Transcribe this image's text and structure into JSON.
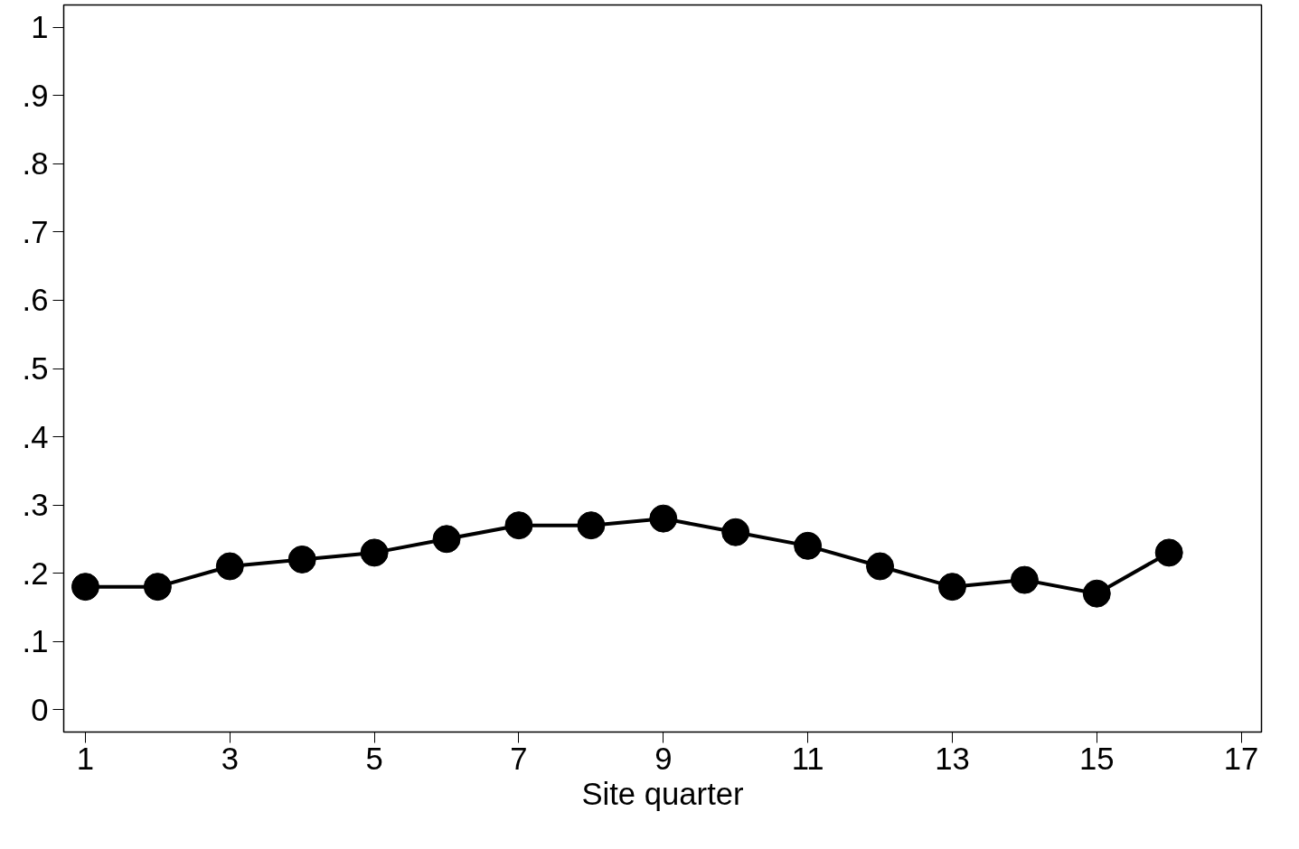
{
  "chart_data": {
    "type": "line",
    "xlabel": "Site quarter",
    "x": [
      1,
      2,
      3,
      4,
      5,
      6,
      7,
      8,
      9,
      10,
      11,
      12,
      13,
      14,
      15,
      16
    ],
    "series": [
      {
        "color": "#000000",
        "values": [
          0.18,
          0.18,
          0.21,
          0.22,
          0.23,
          0.25,
          0.27,
          0.27,
          0.28,
          0.26,
          0.24,
          0.21,
          0.18,
          0.19,
          0.17,
          0.23
        ]
      }
    ],
    "xlim": [
      0.7,
      17.28
    ],
    "ylim": [
      -0.033,
      1.033
    ],
    "xticks": [
      1,
      3,
      5,
      7,
      9,
      11,
      13,
      15,
      17
    ],
    "yticks": [
      {
        "value": 0,
        "label": "0"
      },
      {
        "value": 0.1,
        "label": ".1"
      },
      {
        "value": 0.2,
        "label": ".2"
      },
      {
        "value": 0.3,
        "label": ".3"
      },
      {
        "value": 0.4,
        "label": ".4"
      },
      {
        "value": 0.5,
        "label": ".5"
      },
      {
        "value": 0.6,
        "label": ".6"
      },
      {
        "value": 0.7,
        "label": ".7"
      },
      {
        "value": 0.8,
        "label": ".8"
      },
      {
        "value": 0.9,
        "label": ".9"
      },
      {
        "value": 1,
        "label": "1"
      }
    ],
    "grid": false,
    "marker": "circle",
    "line_style": "solid"
  }
}
